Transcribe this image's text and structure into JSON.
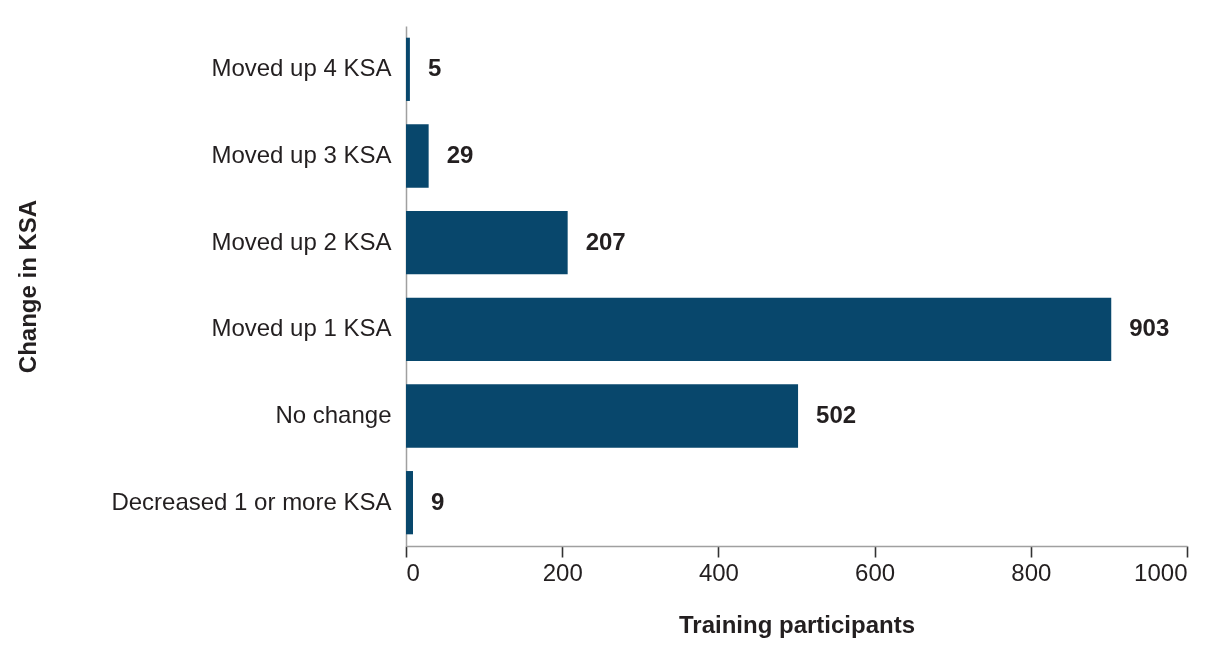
{
  "chart_data": {
    "type": "bar",
    "orientation": "horizontal",
    "xlabel": "Training participants",
    "ylabel": "Change in KSA",
    "categories": [
      "Moved up 4 KSA",
      "Moved up 3 KSA",
      "Moved up 2 KSA",
      "Moved up 1 KSA",
      "No change",
      "Decreased 1 or more KSA"
    ],
    "values": [
      5,
      29,
      207,
      903,
      502,
      9
    ],
    "color": "#08476c",
    "data_labels": true,
    "xlim": [
      0,
      1000
    ],
    "xticks": [
      0,
      200,
      400,
      600,
      800,
      1000
    ]
  }
}
